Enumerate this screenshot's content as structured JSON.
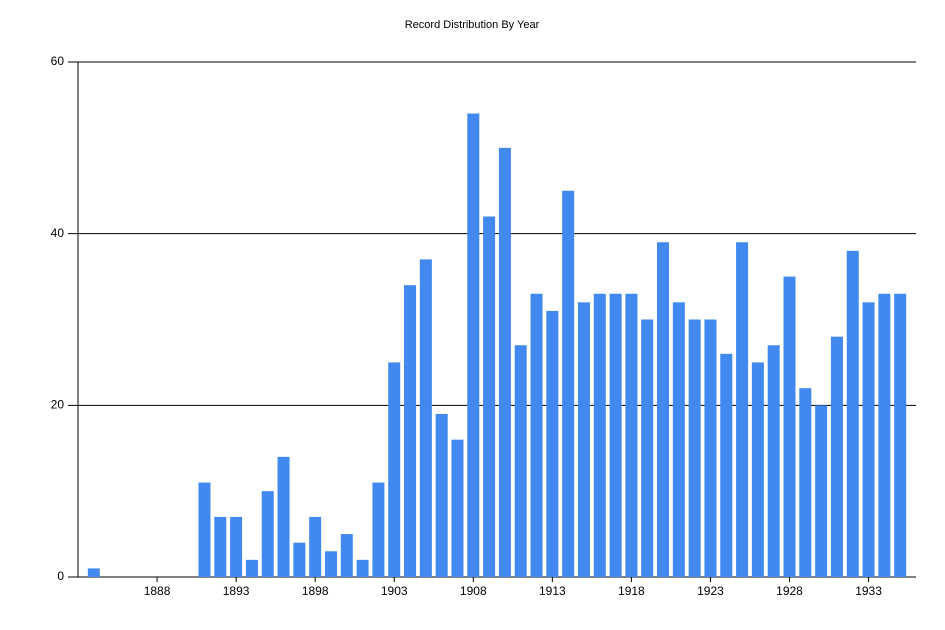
{
  "chart_data": {
    "type": "bar",
    "title": "Record Distribution By Year",
    "x": [
      1884,
      1885,
      1886,
      1887,
      1888,
      1889,
      1890,
      1891,
      1892,
      1893,
      1894,
      1895,
      1896,
      1897,
      1898,
      1899,
      1900,
      1901,
      1902,
      1903,
      1904,
      1905,
      1906,
      1907,
      1908,
      1909,
      1910,
      1911,
      1912,
      1913,
      1914,
      1915,
      1916,
      1917,
      1918,
      1919,
      1920,
      1921,
      1922,
      1923,
      1924,
      1925,
      1926,
      1927,
      1928,
      1929,
      1930,
      1931,
      1932,
      1933,
      1934,
      1935
    ],
    "values": [
      1,
      0,
      0,
      0,
      0,
      0,
      0,
      11,
      7,
      7,
      2,
      10,
      14,
      4,
      7,
      3,
      5,
      2,
      11,
      25,
      34,
      37,
      19,
      16,
      54,
      42,
      50,
      27,
      33,
      31,
      45,
      32,
      33,
      33,
      33,
      30,
      39,
      32,
      30,
      30,
      26,
      39,
      25,
      27,
      35,
      22,
      20,
      28,
      38,
      32,
      33,
      33
    ],
    "color": "#4189ee",
    "xlim": [
      1883,
      1936
    ],
    "xticks": [
      1888,
      1893,
      1898,
      1903,
      1908,
      1913,
      1918,
      1923,
      1928,
      1933
    ],
    "ylim": [
      0,
      60
    ],
    "yticks": [
      0,
      20,
      40,
      60
    ],
    "grid": true
  }
}
